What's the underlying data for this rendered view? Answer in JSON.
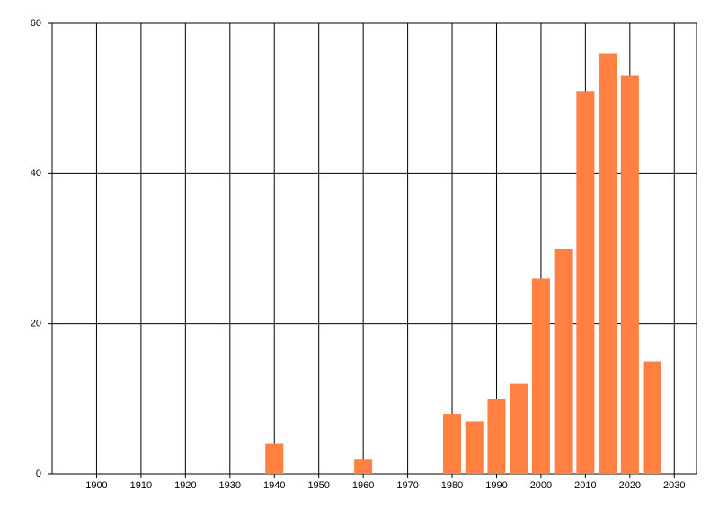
{
  "chart_data": {
    "type": "bar",
    "x": [
      1940,
      1960,
      1980,
      1985,
      1990,
      1995,
      2000,
      2005,
      2010,
      2015,
      2020,
      2025
    ],
    "values": [
      4,
      2,
      8,
      7,
      10,
      12,
      26,
      30,
      51,
      56,
      53,
      15
    ],
    "color": "#ff8040",
    "xlim": [
      1890,
      2035
    ],
    "xticks": [
      1900,
      1910,
      1920,
      1930,
      1940,
      1950,
      1960,
      1970,
      1980,
      1990,
      2000,
      2010,
      2020,
      2030
    ],
    "ylim": [
      0,
      60
    ],
    "yticks": [
      0,
      20,
      40,
      60
    ],
    "grid": true
  }
}
